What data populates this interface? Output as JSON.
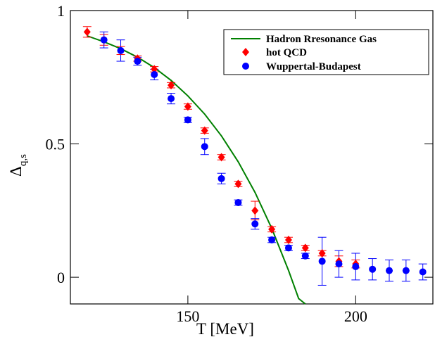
{
  "chart_data": {
    "type": "scatter",
    "xlabel": "T [MeV]",
    "ylabel_main": "Δ",
    "ylabel_sub": "q,s",
    "xlim": [
      115,
      223
    ],
    "ylim": [
      -0.1,
      1.0
    ],
    "xticks": [
      150,
      200
    ],
    "yticks": [
      0,
      0.5,
      1
    ],
    "xtick_labels": [
      "150",
      "200"
    ],
    "ytick_labels": [
      "0",
      "0.5",
      "1"
    ],
    "legend_position": "top-right",
    "series": [
      {
        "name": "Hadron Rresonance Gas",
        "kind": "line",
        "color": "#008000",
        "x": [
          120,
          125,
          130,
          135,
          140,
          145,
          150,
          155,
          160,
          165,
          170,
          175,
          180,
          183,
          185
        ],
        "y": [
          0.905,
          0.883,
          0.857,
          0.825,
          0.786,
          0.738,
          0.68,
          0.612,
          0.53,
          0.433,
          0.318,
          0.183,
          0.025,
          -0.08,
          -0.1
        ]
      },
      {
        "name": "hot QCD",
        "kind": "points",
        "marker": "diamond",
        "color": "#ff0000",
        "x": [
          120,
          125,
          130,
          135,
          140,
          145,
          150,
          155,
          160,
          165,
          170,
          175,
          180,
          185,
          190,
          195,
          200
        ],
        "y": [
          0.92,
          0.89,
          0.85,
          0.82,
          0.78,
          0.72,
          0.64,
          0.55,
          0.45,
          0.35,
          0.25,
          0.18,
          0.14,
          0.11,
          0.09,
          0.06,
          0.05
        ],
        "err": [
          0.02,
          0.02,
          0.015,
          0.01,
          0.01,
          0.01,
          0.01,
          0.01,
          0.01,
          0.01,
          0.035,
          0.01,
          0.01,
          0.01,
          0.01,
          0.02,
          0.015
        ]
      },
      {
        "name": "Wuppertal-Budapest",
        "kind": "points",
        "marker": "circle",
        "color": "#0000ff",
        "x": [
          125,
          130,
          135,
          140,
          145,
          150,
          155,
          160,
          165,
          170,
          175,
          180,
          185,
          190,
          195,
          200,
          205,
          210,
          215,
          220
        ],
        "y": [
          0.89,
          0.85,
          0.81,
          0.76,
          0.67,
          0.59,
          0.49,
          0.37,
          0.28,
          0.2,
          0.14,
          0.11,
          0.08,
          0.06,
          0.05,
          0.04,
          0.03,
          0.025,
          0.025,
          0.02
        ],
        "err": [
          0.03,
          0.04,
          0.015,
          0.02,
          0.02,
          0.01,
          0.03,
          0.02,
          0.01,
          0.02,
          0.01,
          0.01,
          0.01,
          0.09,
          0.05,
          0.05,
          0.04,
          0.04,
          0.04,
          0.03
        ]
      }
    ]
  }
}
